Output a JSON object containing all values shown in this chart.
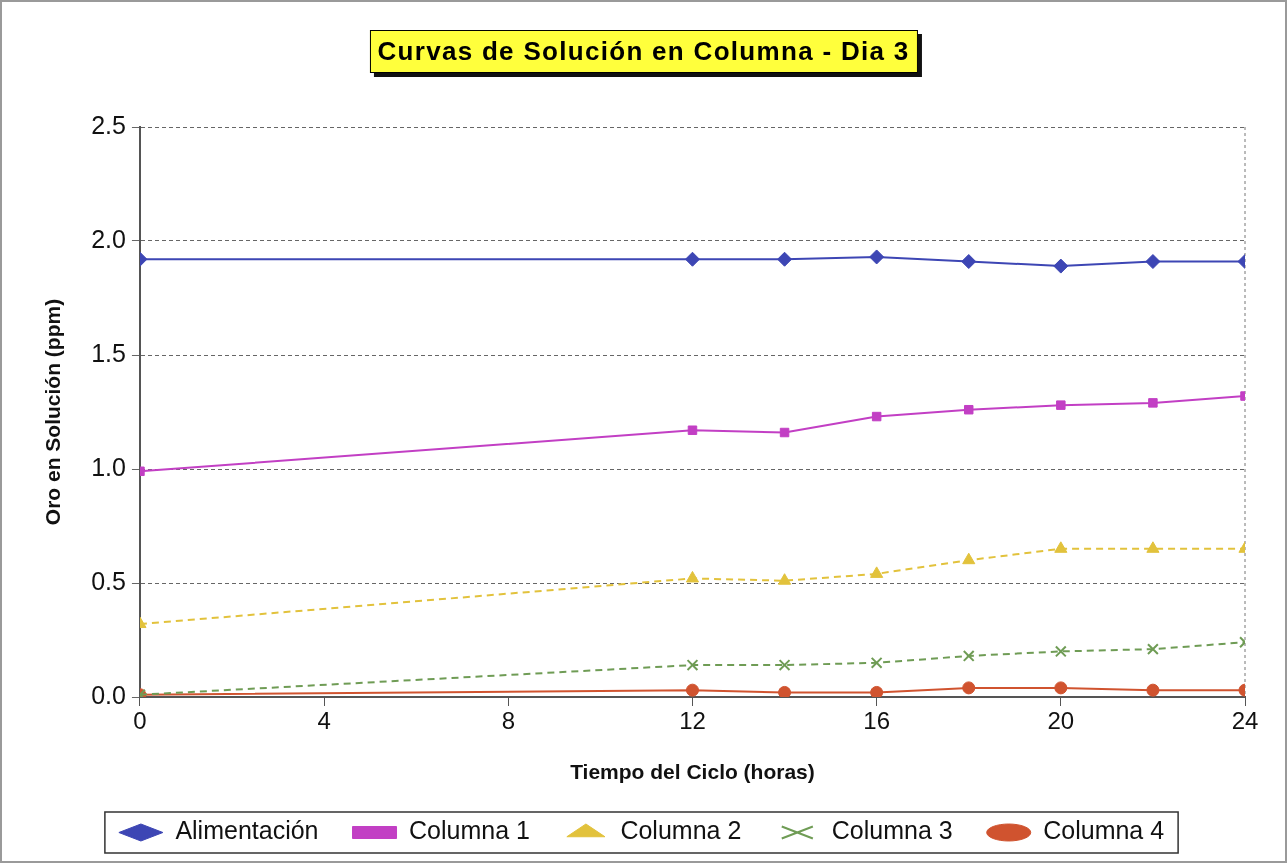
{
  "chart_data": {
    "type": "line",
    "title": "Curvas de Solución en Columna - Dia 3",
    "xlabel": "Tiempo del Ciclo (horas)",
    "ylabel": "Oro en Solución (ppm)",
    "x": [
      0,
      12,
      14,
      16,
      18,
      20,
      22,
      24
    ],
    "series": [
      {
        "name": "Alimentación",
        "color": "#3d46b4",
        "marker": "diamond",
        "line_style": "solid",
        "values": [
          1.92,
          1.92,
          1.92,
          1.93,
          1.91,
          1.89,
          1.91,
          1.91
        ]
      },
      {
        "name": "Columna 1",
        "color": "#c23fc4",
        "marker": "square",
        "line_style": "solid",
        "values": [
          0.99,
          1.17,
          1.16,
          1.23,
          1.26,
          1.28,
          1.29,
          1.32
        ]
      },
      {
        "name": "Columna 2",
        "color": "#e2c23c",
        "marker": "triangle",
        "line_style": "dashed",
        "values": [
          0.32,
          0.52,
          0.51,
          0.54,
          0.6,
          0.65,
          0.65,
          0.65
        ]
      },
      {
        "name": "Columna 3",
        "color": "#6f9c55",
        "marker": "cross",
        "line_style": "dashed",
        "values": [
          0.01,
          0.14,
          0.14,
          0.15,
          0.18,
          0.2,
          0.21,
          0.24
        ]
      },
      {
        "name": "Columna 4",
        "color": "#d0532f",
        "marker": "circle",
        "line_style": "solid",
        "values": [
          0.01,
          0.03,
          0.02,
          0.02,
          0.04,
          0.04,
          0.03,
          0.03
        ]
      }
    ],
    "xlim": [
      0,
      24
    ],
    "xticks": [
      0,
      4,
      8,
      12,
      16,
      20,
      24
    ],
    "ylim": [
      0,
      2.5
    ],
    "yticks": [
      {
        "value": 0,
        "label": "0.0"
      },
      0.5,
      {
        "value": 1,
        "label": "1.0"
      },
      1.5,
      {
        "value": 2,
        "label": "2.0"
      },
      2.5
    ],
    "grid": "y",
    "legend": "bottom"
  }
}
